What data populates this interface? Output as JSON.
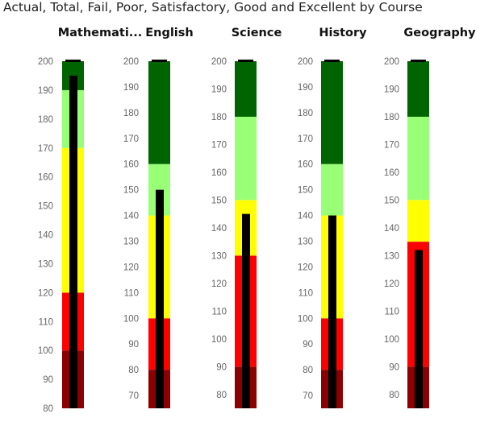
{
  "title": "Actual, Total, Fail, Poor, Satisfactory, Good and Excellent by Course",
  "colors": {
    "fail": "#8b0000",
    "poor": "#ff0000",
    "satisfactory": "#ffff00",
    "good": "#99ff77",
    "excellent": "#006400",
    "actual": "#000000",
    "total": "#000000"
  },
  "chart_data": {
    "type": "bullet",
    "title": "Actual, Total, Fail, Poor, Satisfactory, Good and Excellent by Course",
    "bands": [
      "Fail",
      "Poor",
      "Satisfactory",
      "Good",
      "Excellent"
    ],
    "courses": [
      {
        "name": "Mathemati...",
        "ylim": [
          80,
          200
        ],
        "ticks": [
          80,
          90,
          100,
          110,
          120,
          130,
          140,
          150,
          160,
          170,
          180,
          190,
          200
        ],
        "fail": 100,
        "poor": 120,
        "satisfactory": 170,
        "good": 190,
        "excellent": 200,
        "actual": 195,
        "total": 200
      },
      {
        "name": "English",
        "ylim": [
          65,
          200
        ],
        "ticks": [
          70,
          80,
          90,
          100,
          110,
          120,
          130,
          140,
          150,
          160,
          170,
          180,
          190,
          200
        ],
        "fail": 80,
        "poor": 100,
        "satisfactory": 140,
        "good": 160,
        "excellent": 200,
        "actual": 150,
        "total": 200
      },
      {
        "name": "Science",
        "ylim": [
          75,
          200
        ],
        "ticks": [
          80,
          90,
          100,
          110,
          120,
          130,
          140,
          150,
          160,
          170,
          180,
          190,
          200
        ],
        "fail": 90,
        "poor": 130,
        "satisfactory": 150,
        "good": 180,
        "excellent": 200,
        "actual": 145,
        "total": 200
      },
      {
        "name": "History",
        "ylim": [
          65,
          200
        ],
        "ticks": [
          70,
          80,
          90,
          100,
          110,
          120,
          130,
          140,
          150,
          160,
          170,
          180,
          190,
          200
        ],
        "fail": 80,
        "poor": 100,
        "satisfactory": 140,
        "good": 160,
        "excellent": 200,
        "actual": 140,
        "total": 200
      },
      {
        "name": "Geography",
        "ylim": [
          75,
          200
        ],
        "ticks": [
          80,
          90,
          100,
          110,
          120,
          130,
          140,
          150,
          160,
          170,
          180,
          190,
          200
        ],
        "fail": 90,
        "poor": 135,
        "satisfactory": 150,
        "good": 180,
        "excellent": 200,
        "actual": 132,
        "total": 200
      }
    ]
  }
}
